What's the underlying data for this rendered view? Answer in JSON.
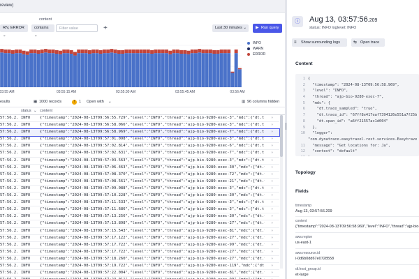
{
  "top_strip": {
    "text": "review)"
  },
  "filters": {
    "content_label": "content",
    "level_chip": "RN, ERROR",
    "operator": "contains",
    "filter_placeholder": "Filter value",
    "add_icon": "plus-icon",
    "timeframe": "Last 30 minutes",
    "run_label": "Run query"
  },
  "chart_data": {
    "type": "bar",
    "stacked": true,
    "xlabel": "",
    "ylabel": "",
    "x_tick_labels": [
      "03:55 AM",
      "03:55:15 AM",
      "03:55:30 AM",
      "03:55:45 AM",
      "03:56 AM"
    ],
    "legend": [
      "INFO",
      "WARN",
      "ERROR"
    ],
    "legend_position": "top-right",
    "colors": {
      "INFO": "#4a72c9",
      "WARN": "#1f2b5e",
      "ERROR": "#c2453a"
    },
    "series": [
      {
        "name": "INFO",
        "values": [
          58,
          57,
          57,
          56,
          57,
          57,
          55,
          54,
          57,
          57,
          56,
          57,
          58,
          57,
          57,
          56,
          55,
          57,
          57,
          56,
          53,
          57,
          57,
          57,
          56,
          57,
          57,
          56,
          57,
          57,
          58,
          57,
          56,
          56,
          57,
          57,
          57,
          57,
          57,
          57,
          57,
          56,
          57,
          57,
          57,
          57,
          55,
          57,
          57,
          56,
          56,
          55,
          57,
          57,
          58,
          57,
          57,
          57,
          56,
          56,
          57,
          57,
          57,
          24,
          57,
          30
        ]
      },
      {
        "name": "WARN",
        "values": [
          0,
          0,
          0,
          0,
          0,
          0,
          0,
          0,
          0,
          0,
          0,
          0,
          0,
          0,
          0,
          0,
          0,
          0,
          0,
          0,
          0,
          0,
          0,
          0,
          0,
          0,
          0,
          0,
          0,
          0,
          0,
          0,
          0,
          0,
          0,
          0,
          0,
          0,
          0,
          0,
          0,
          0,
          0,
          0,
          0,
          0,
          0,
          0,
          0,
          0,
          0,
          0,
          0,
          0,
          0,
          0,
          0,
          0,
          0,
          0,
          0,
          0,
          0,
          0,
          0,
          0
        ]
      },
      {
        "name": "ERROR",
        "values": [
          6,
          6,
          6,
          6,
          6,
          6,
          6,
          6,
          6,
          6,
          6,
          6,
          6,
          6,
          6,
          6,
          6,
          6,
          6,
          6,
          6,
          6,
          6,
          6,
          6,
          6,
          6,
          6,
          6,
          6,
          6,
          6,
          6,
          6,
          6,
          6,
          6,
          6,
          6,
          6,
          6,
          6,
          6,
          6,
          6,
          6,
          6,
          6,
          6,
          6,
          6,
          6,
          6,
          6,
          6,
          6,
          6,
          6,
          6,
          6,
          6,
          6,
          6,
          2,
          6,
          2
        ]
      }
    ],
    "ylim": [
      0,
      70
    ],
    "grid": true
  },
  "toolbar": {
    "results_label": "esults",
    "records": "1000 records",
    "warning_count": "1",
    "open_with": "Open with",
    "columns_hidden": "96 columns hidden"
  },
  "table": {
    "headers": [
      "status",
      "content"
    ],
    "rows": [
      {
        "timestamp": "57:56.2..",
        "status": "INFO",
        "content": "{\"timestamp\":\"2024-08-13T09:56:55.729\",\"level\":\"INFO\",\"thread\":\"ajp-bio-9280-exec-3\",\"mdc\":{\"dt.trace_"
      },
      {
        "timestamp": "57:56.2..",
        "status": "INFO",
        "content": "{\"timestamp\":\"2024-08-13T09:56:58.066\",\"level\":\"INFO\",\"thread\":\"ajp-bio-9280-exec-3\",\"mdc\":{\"dt.trace_"
      },
      {
        "timestamp": "57:56.2..",
        "status": "INFO",
        "content": "{\"timestamp\":\"2024-08-13T09:56:58.969\",\"level\":\"INFO\",\"thread\":\"ajp-bio-9280-exec-7\",\"mdc\":{\"dt.trace_"
      },
      {
        "timestamp": "57:56.2..",
        "status": "INFO",
        "content": "{\"timestamp\":\"2024-08-13T09:57:01.098\",\"level\":\"INFO\",\"thread\":\"ajp-bio-9280-exec-3\",\"mdc\":{\"dt.trace_"
      },
      {
        "timestamp": "57:56.2..",
        "status": "INFO",
        "content": "{\"timestamp\":\"2024-08-13T09:57:02.814\",\"level\":\"INFO\",\"thread\":\"ajp-bio-9280-exec-6\",\"mdc\":{\"dt.trace_"
      },
      {
        "timestamp": "57:56.2..",
        "status": "INFO",
        "content": "{\"timestamp\":\"2024-08-13T09:57:02.631\",\"level\":\"INFO\",\"thread\":\"ajp-bio-9280-exec-7\",\"mdc\":{\"dt.trace_"
      },
      {
        "timestamp": "57:56.2..",
        "status": "INFO",
        "content": "{\"timestamp\":\"2024-08-13T09:57:03.563\",\"level\":\"INFO\",\"thread\":\"ajp-bio-9280-exec-3\",\"mdc\":{\"dt.trace_"
      },
      {
        "timestamp": "57:56.2..",
        "status": "INFO",
        "content": "{\"timestamp\":\"2024-08-13T09:57:06.463\",\"level\":\"INFO\",\"thread\":\"ajp-bio-9280-exec-30\",\"mdc\":{\"dt.trace"
      },
      {
        "timestamp": "57:56.2..",
        "status": "INFO",
        "content": "{\"timestamp\":\"2024-08-13T09:57:08.370\",\"level\":\"INFO\",\"thread\":\"ajp-bio-9280-exec-72\",\"mdc\":{\"dt.trace"
      },
      {
        "timestamp": "57:56.2..",
        "status": "INFO",
        "content": "{\"timestamp\":\"2024-08-13T09:57:08.561\",\"level\":\"INFO\",\"thread\":\"ajp-bio-9280-exec-21\",\"mdc\":{\"dt.trace"
      },
      {
        "timestamp": "57:56.2..",
        "status": "INFO",
        "content": "{\"timestamp\":\"2024-08-13T09:57:09.088\",\"level\":\"INFO\",\"thread\":\"ajp-bio-9280-exec-3\",\"mdc\":{\"dt.trace_"
      },
      {
        "timestamp": "57:56.2..",
        "status": "INFO",
        "content": "{\"timestamp\":\"2024-08-13T09:57:10.228\",\"level\":\"INFO\",\"thread\":\"ajp-bio-9280-exec-30\",\"mdc\":{\"dt.trace"
      },
      {
        "timestamp": "57:56.2..",
        "status": "INFO",
        "content": "{\"timestamp\":\"2024-08-13T09:57:11.533\",\"level\":\"INFO\",\"thread\":\"ajp-bio-9280-exec-3\",\"mdc\":{\"dt.trace_"
      },
      {
        "timestamp": "57:56.2..",
        "status": "INFO",
        "content": "{\"timestamp\":\"2024-08-13T09:57:11.686\",\"level\":\"INFO\",\"thread\":\"ajp-bio-9280-exec-3\",\"mdc\":{\"dt.trace_"
      },
      {
        "timestamp": "57:56.2..",
        "status": "INFO",
        "content": "{\"timestamp\":\"2024-08-13T09:57:13.256\",\"level\":\"INFO\",\"thread\":\"ajp-bio-9280-exec-30\",\"mdc\":{\"dt.trace"
      },
      {
        "timestamp": "57:56.2..",
        "status": "INFO",
        "content": "{\"timestamp\":\"2024-08-13T09:57:13.898\",\"level\":\"INFO\",\"thread\":\"ajp-bio-9280-exec-27\",\"mdc\":{\"dt.trace"
      },
      {
        "timestamp": "57:56.2..",
        "status": "INFO",
        "content": "{\"timestamp\":\"2024-08-13T09:57:15.543\",\"level\":\"INFO\",\"thread\":\"ajp-bio-9280-exec-81\",\"mdc\":{\"dt.trace"
      },
      {
        "timestamp": "57:56.2..",
        "status": "INFO",
        "content": "{\"timestamp\":\"2024-08-13T09:57:17.122\",\"level\":\"INFO\",\"thread\":\"ajp-bio-9280-exec-27\",\"mdc\":{\"dt.trace"
      },
      {
        "timestamp": "57:56.2..",
        "status": "INFO",
        "content": "{\"timestamp\":\"2024-08-13T09:57:17.722\",\"level\":\"INFO\",\"thread\":\"ajp-bio-9280-exec-99\",\"mdc\":{\"dt.trace"
      },
      {
        "timestamp": "57:56.2..",
        "status": "INFO",
        "content": "{\"timestamp\":\"2024-08-13T09:57:17.722\",\"level\":\"INFO\",\"thread\":\"ajp-bio-9280-exec-27\",\"mdc\":{\"dt.trace"
      },
      {
        "timestamp": "57:56.2..",
        "status": "INFO",
        "content": "{\"timestamp\":\"2024-08-13T09:57:18.260\",\"level\":\"INFO\",\"thread\":\"ajp-bio-9280-exec-27\",\"mdc\":{\"dt.trace"
      },
      {
        "timestamp": "57:56.2..",
        "status": "INFO",
        "content": "{\"timestamp\":\"2024-08-13T09:57:19.722\",\"level\":\"INFO\",\"thread\":\"ajp-bio-9280-exec-119\",\"mdc\":{\"dt.trac"
      },
      {
        "timestamp": "57:56.2..",
        "status": "INFO",
        "content": "{\"timestamp\":\"2024-08-13T09:57:22.004\",\"level\":\"INFO\",\"thread\":\"ajp-bio-9280-exec-81\",\"mdc\":{\"dt.trace"
      },
      {
        "timestamp": "57:56.2..",
        "status": "INFO",
        "content": "{\"timestamp\":\"2024-08-13T09:57:23.011\",\"level\":\"INFO\",\"thread\":\"ajp-bio-9280-exec-99\",\"mdc\":{\"dt.trace"
      }
    ],
    "selected_index": 2,
    "expand_icon": "chevron-right-icon"
  },
  "details": {
    "icon": "info-icon",
    "time": "Aug 13, 03:57:56",
    "time_ms": ".209",
    "status_line": "status: INFO    loglevel: INFO",
    "btn_surrounding": "Show surrounding logs",
    "btn_trace": "Open trace",
    "content_title": "Content",
    "code_lines": [
      {
        "n": "1",
        "t": "{"
      },
      {
        "n": "2",
        "t": "  \"timestamp\": \"2024-08-13T09:56:58.969\","
      },
      {
        "n": "3",
        "t": "  \"level\": \"INFO\","
      },
      {
        "n": "4",
        "t": "  \"thread\": \"ajp-bio-9280-exec-7\","
      },
      {
        "n": "5",
        "t": "  \"mdc\": {"
      },
      {
        "n": "6",
        "t": "    \"dt.trace_sampled\": \"true\","
      },
      {
        "n": "7",
        "t": "    \"dt.trace_id\": \"67ff8e417eaf7394126e551a7f25b"
      },
      {
        "n": "8",
        "t": "    \"dt.span_id\": \"a6ff21557ac1d004\""
      },
      {
        "n": "9",
        "t": "  },"
      },
      {
        "n": "10",
        "t": "  \"logger\":"
      },
      {
        "n": "",
        "t": "\"com.dynatrace.easytravel.rest.services.Easytrave"
      },
      {
        "n": "11",
        "t": "  \"message\": \"Get locations for: Ja\","
      },
      {
        "n": "12",
        "t": "  \"context\": \"default\""
      },
      {
        "n": "13",
        "t": "}"
      }
    ],
    "topology_title": "Topology",
    "fields_title": "Fields",
    "fields": [
      {
        "key": "timestamp",
        "value": "Aug 13, 03:57:56.209"
      },
      {
        "key": "content",
        "value": "{\"timestamp\":\"2024-08-13T09:56:58.969\",\"level\":\"INFO\",\"thread\":\"ajp-bio-9"
      },
      {
        "key": "aws.region",
        "value": "us-east-1"
      },
      {
        "key": "aws.resource.id",
        "value": "i-0d6b0dd67e0728558"
      },
      {
        "key": "dt.host_group.id",
        "value": "et-large"
      }
    ]
  }
}
